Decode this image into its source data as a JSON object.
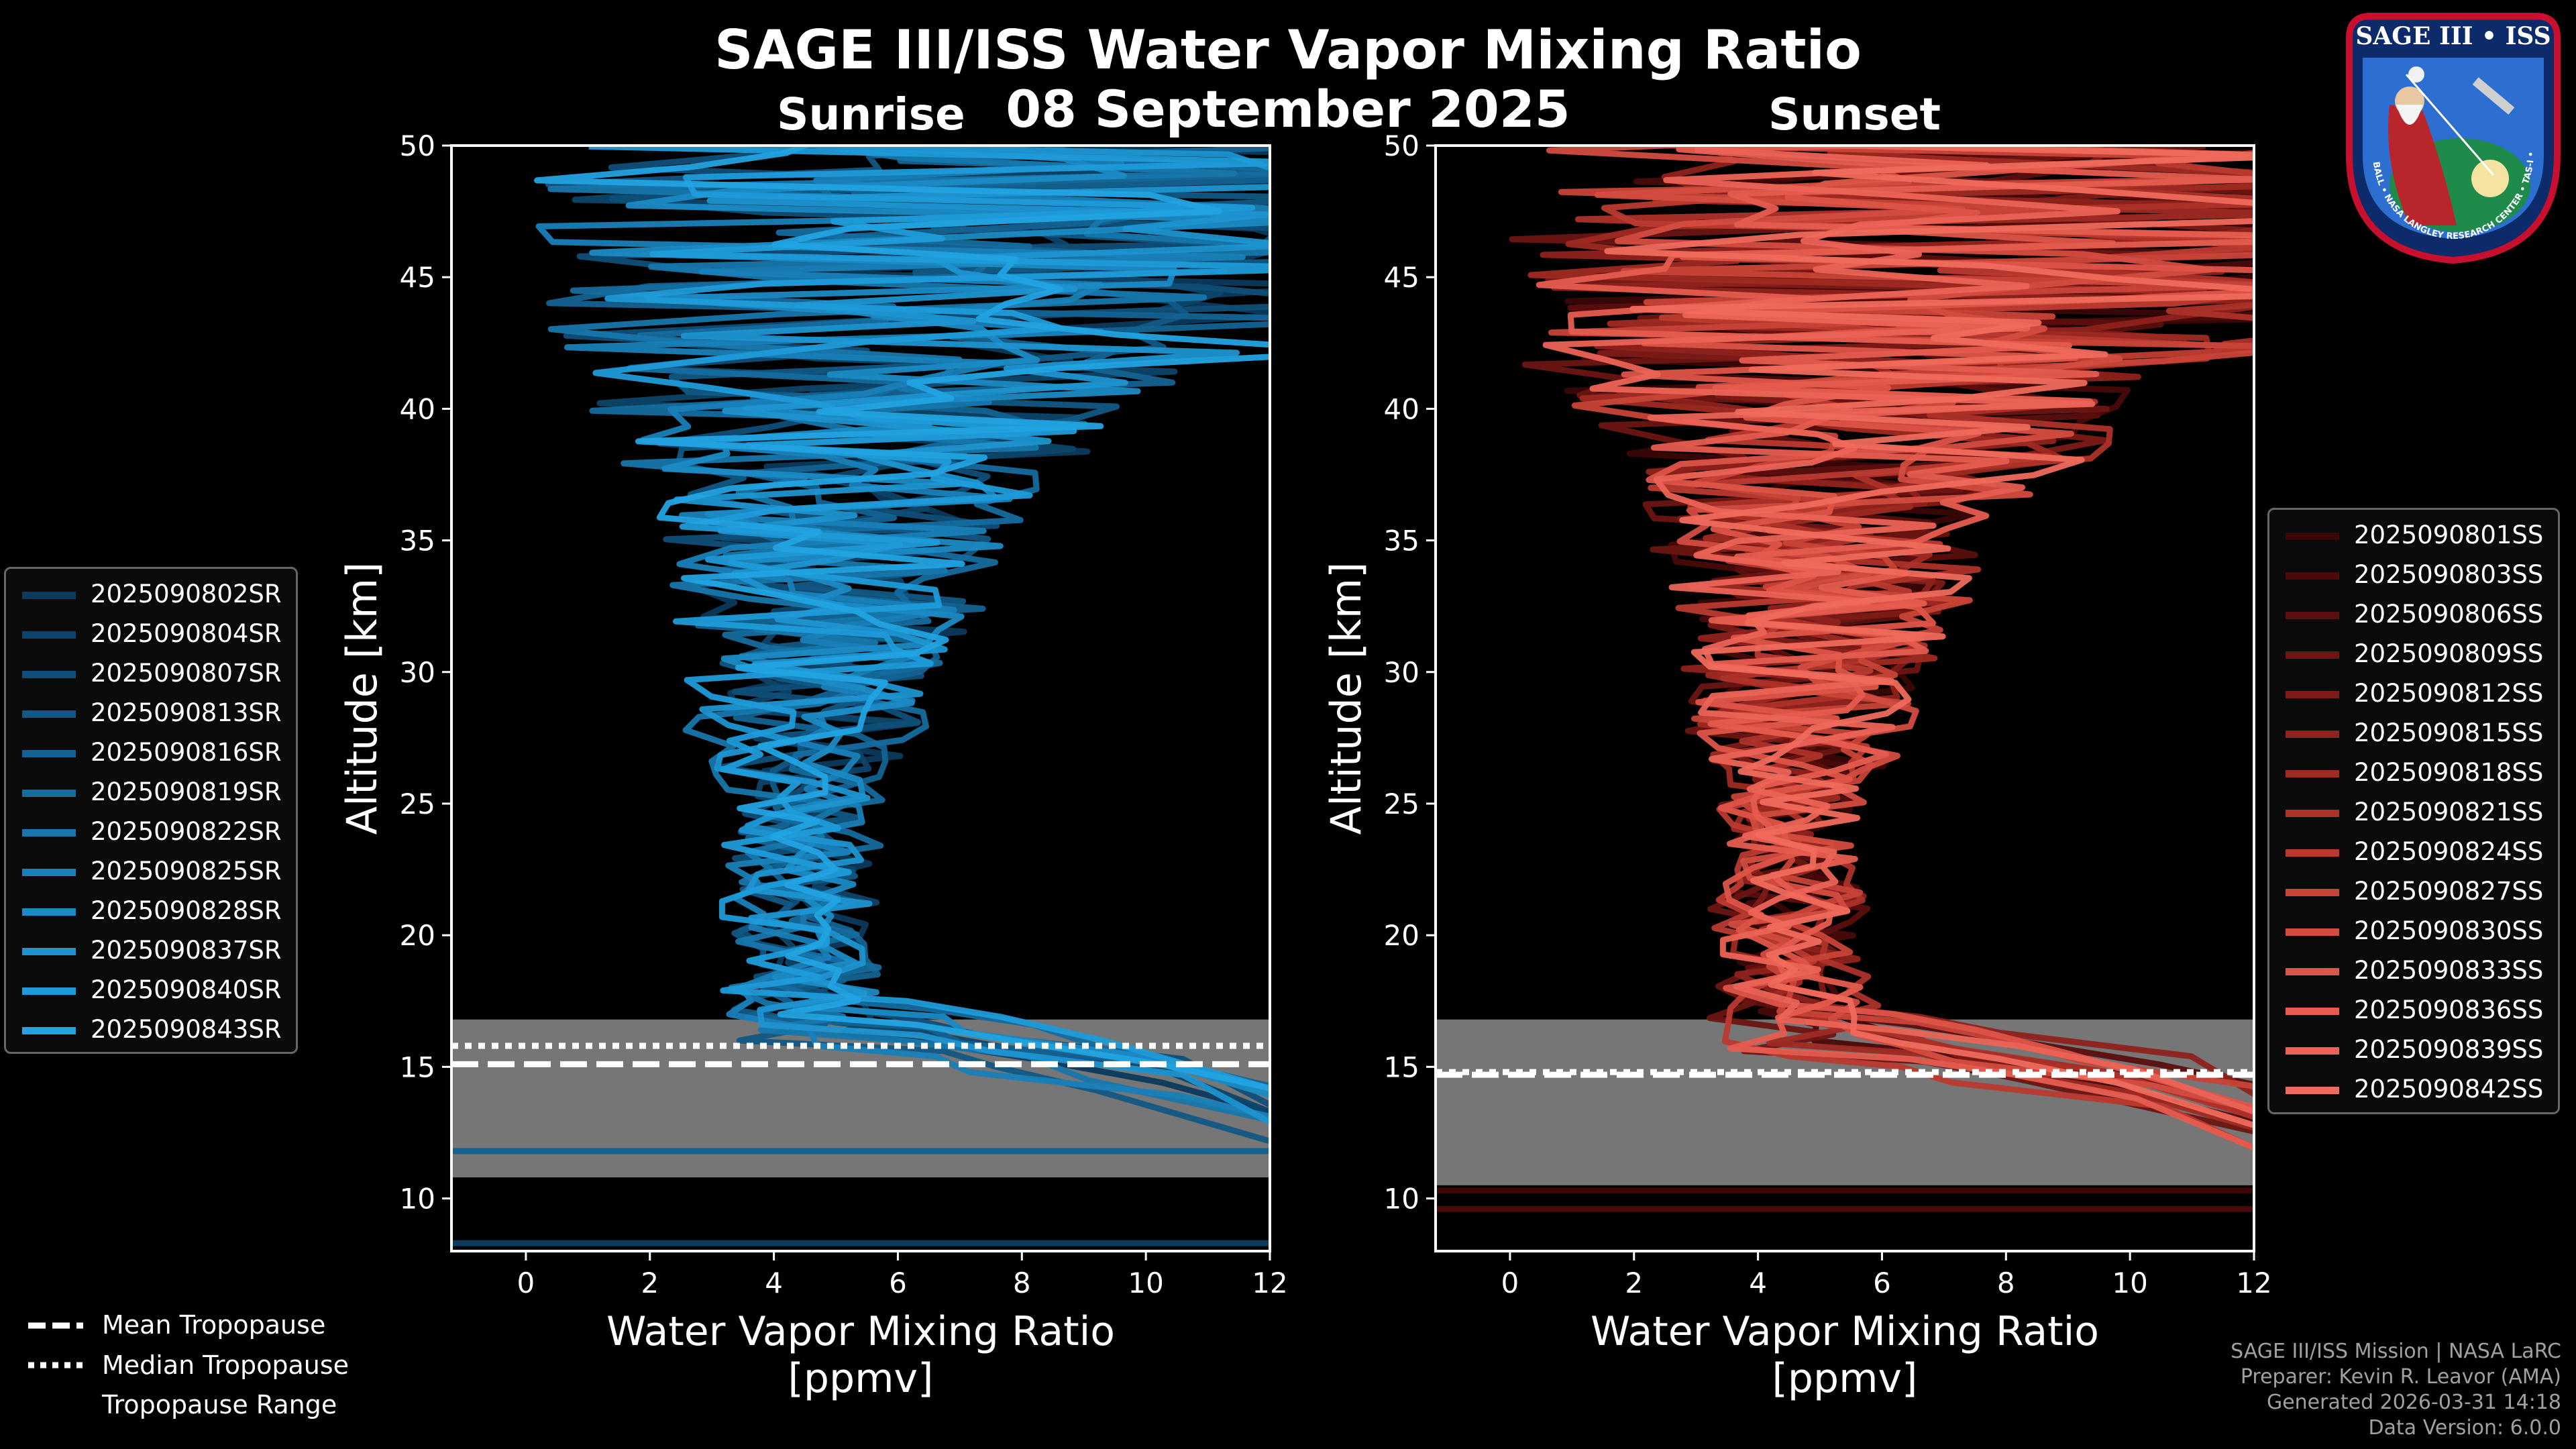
{
  "header": {
    "title": "SAGE III/ISS Water Vapor Mixing Ratio",
    "date": "08 September 2025",
    "left_panel_label": "Sunrise",
    "right_panel_label": "Sunset"
  },
  "chart_data": [
    {
      "type": "line",
      "panel": "Sunrise",
      "xlabel_line1": "Water Vapor Mixing Ratio",
      "xlabel_line2": "[ppmv]",
      "ylabel": "Altitude [km]",
      "xlim": [
        -1.2,
        12
      ],
      "ylim": [
        8,
        50
      ],
      "xticks": [
        0,
        2,
        4,
        6,
        8,
        10,
        12
      ],
      "yticks": [
        10,
        15,
        20,
        25,
        30,
        35,
        40,
        45,
        50
      ],
      "tropopause": {
        "mean": 15.1,
        "median": 15.8,
        "range": [
          10.8,
          16.8
        ]
      },
      "series": [
        {
          "name": "2025090802SR",
          "color": "#0b3a5c",
          "tropo_km": 14.9,
          "flat_km": 8.3
        },
        {
          "name": "2025090804SR",
          "color": "#0d4469",
          "tropo_km": 15.3,
          "flat_km": null
        },
        {
          "name": "2025090807SR",
          "color": "#0f4e77",
          "tropo_km": 15.8,
          "flat_km": null
        },
        {
          "name": "2025090813SR",
          "color": "#115884",
          "tropo_km": 14.6,
          "flat_km": null
        },
        {
          "name": "2025090816SR",
          "color": "#136291",
          "tropo_km": 15.5,
          "flat_km": 11.8
        },
        {
          "name": "2025090819SR",
          "color": "#156c9e",
          "tropo_km": 16.2,
          "flat_km": null
        },
        {
          "name": "2025090822SR",
          "color": "#1776ab",
          "tropo_km": 15.0,
          "flat_km": null
        },
        {
          "name": "2025090825SR",
          "color": "#1980b8",
          "tropo_km": 14.4,
          "flat_km": null
        },
        {
          "name": "2025090828SR",
          "color": "#1b8ac4",
          "tropo_km": 15.9,
          "flat_km": null
        },
        {
          "name": "2025090837SR",
          "color": "#1d93d0",
          "tropo_km": 15.2,
          "flat_km": null
        },
        {
          "name": "2025090840SR",
          "color": "#1f9bd9",
          "tropo_km": 16.5,
          "flat_km": null
        },
        {
          "name": "2025090843SR",
          "color": "#22a3e2",
          "tropo_km": 15.6,
          "flat_km": null
        }
      ]
    },
    {
      "type": "line",
      "panel": "Sunset",
      "xlabel_line1": "Water Vapor Mixing Ratio",
      "xlabel_line2": "[ppmv]",
      "ylabel": "Altitude [km]",
      "xlim": [
        -1.2,
        12
      ],
      "ylim": [
        8,
        50
      ],
      "xticks": [
        0,
        2,
        4,
        6,
        8,
        10,
        12
      ],
      "yticks": [
        10,
        15,
        20,
        25,
        30,
        35,
        40,
        45,
        50
      ],
      "tropopause": {
        "mean": 14.7,
        "median": 14.8,
        "range": [
          10.5,
          16.8
        ]
      },
      "series": [
        {
          "name": "2025090801SS",
          "color": "#3a0606",
          "tropo_km": 15.2,
          "flat_km": 10.3
        },
        {
          "name": "2025090803SS",
          "color": "#4a0a0a",
          "tropo_km": 14.6,
          "flat_km": 9.6
        },
        {
          "name": "2025090806SS",
          "color": "#5b0f0e",
          "tropo_km": 15.6,
          "flat_km": null
        },
        {
          "name": "2025090809SS",
          "color": "#6c1512",
          "tropo_km": 14.2,
          "flat_km": null
        },
        {
          "name": "2025090812SS",
          "color": "#7d1b17",
          "tropo_km": 15.0,
          "flat_km": null
        },
        {
          "name": "2025090815SS",
          "color": "#8e221c",
          "tropo_km": 15.9,
          "flat_km": null
        },
        {
          "name": "2025090818SS",
          "color": "#9e2a22",
          "tropo_km": 14.5,
          "flat_km": null
        },
        {
          "name": "2025090821SS",
          "color": "#ad3229",
          "tropo_km": 15.3,
          "flat_km": null
        },
        {
          "name": "2025090824SS",
          "color": "#bb3a30",
          "tropo_km": 14.0,
          "flat_km": null
        },
        {
          "name": "2025090827SS",
          "color": "#c84338",
          "tropo_km": 15.7,
          "flat_km": null
        },
        {
          "name": "2025090830SS",
          "color": "#d34c40",
          "tropo_km": 14.8,
          "flat_km": null
        },
        {
          "name": "2025090833SS",
          "color": "#dd5448",
          "tropo_km": 16.0,
          "flat_km": null
        },
        {
          "name": "2025090836SS",
          "color": "#e55c4f",
          "tropo_km": 14.3,
          "flat_km": null
        },
        {
          "name": "2025090839SS",
          "color": "#eb6356",
          "tropo_km": 15.4,
          "flat_km": null
        },
        {
          "name": "2025090842SS",
          "color": "#ef6a5c",
          "tropo_km": 14.9,
          "flat_km": null
        }
      ]
    }
  ],
  "bottom_legend": {
    "mean": "Mean Tropopause",
    "median": "Median Tropopause",
    "range": "Tropopause Range"
  },
  "credits": {
    "line1": "SAGE III/ISS Mission | NASA LaRC",
    "line2": "Preparer: Kevin R. Leavor (AMA)",
    "line3": "Generated 2026-03-31 14:18",
    "line4": "Data Version: 6.0.0"
  },
  "logo": {
    "top_text": "SAGE III • ISS",
    "ring_text": "BALL • NASA LANGLEY RESEARCH CENTER • TAS-I • ESA"
  },
  "colors": {
    "sunrise": "#1a8fd0",
    "sunset": "#e8564a",
    "tropo_fill": "#808080"
  }
}
